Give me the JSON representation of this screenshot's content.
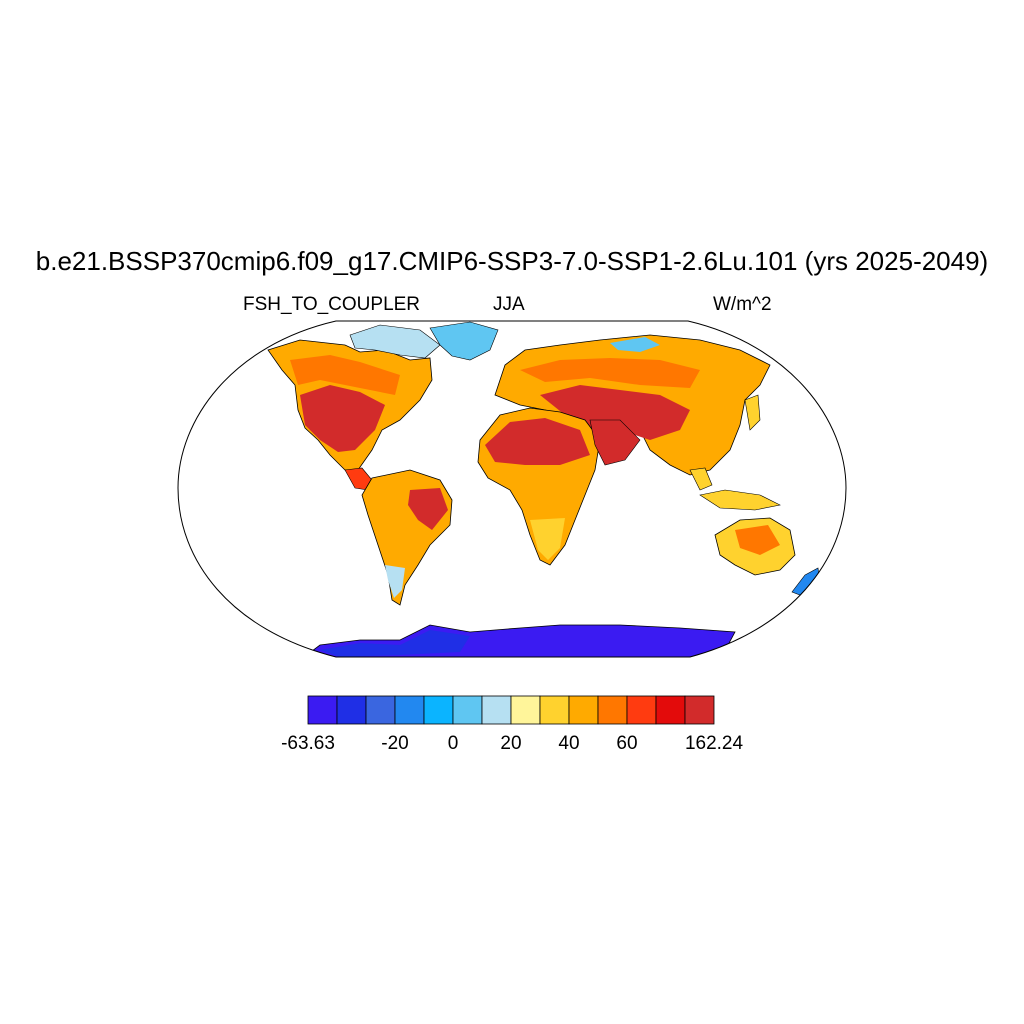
{
  "title": "b.e21.BSSP370cmip6.f09_g17.CMIP6-SSP3-7.0-SSP1-2.6Lu.101 (yrs 2025-2049)",
  "variable": "FSH_TO_COUPLER",
  "season": "JJA",
  "units": "W/m^2",
  "colorbar": {
    "colors": [
      "#3b1bf2",
      "#1f2fe6",
      "#3a66e0",
      "#2288f0",
      "#0bb4ff",
      "#5fc6f2",
      "#b6e0f2",
      "#fff59a",
      "#ffd22e",
      "#ffaa00",
      "#ff7700",
      "#ff3b10",
      "#e30b0b",
      "#d22b2b"
    ],
    "labels": [
      "-63.63",
      "-20",
      "0",
      "20",
      "40",
      "60",
      "162.24"
    ]
  },
  "chart_data": {
    "type": "heatmap",
    "projection": "Robinson",
    "title": "b.e21.BSSP370cmip6.f09_g17.CMIP6-SSP3-7.0-SSP1-2.6Lu.101 (yrs 2025-2049)",
    "variable": "FSH_TO_COUPLER",
    "season": "JJA",
    "units": "W/m^2",
    "range": [
      -63.63,
      162.24
    ],
    "colorbar_ticks": [
      "-63.63",
      "-20",
      "0",
      "20",
      "40",
      "60",
      "162.24"
    ]
  }
}
